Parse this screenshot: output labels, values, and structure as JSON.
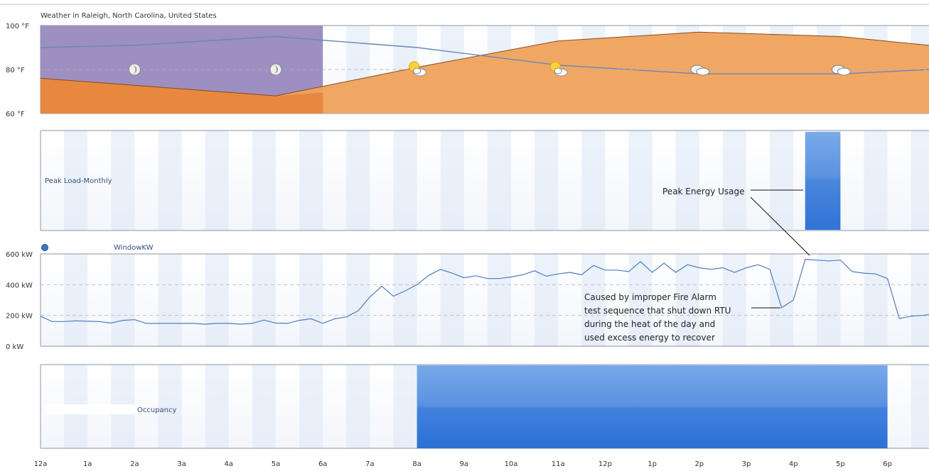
{
  "weather_title": "Weather in Raleigh, North Carolina, United States",
  "hours": [
    "12a",
    "1a",
    "2a",
    "3a",
    "4a",
    "5a",
    "6a",
    "7a",
    "8a",
    "9a",
    "10a",
    "11a",
    "12p",
    "1p",
    "2p",
    "3p",
    "4p",
    "5p",
    "6p"
  ],
  "colors": {
    "night_band": "#9d8fc0",
    "day_band": "#f0a25c",
    "temp_fill": "#e8843a",
    "temp_line": "#6a86b8",
    "bar_blue": "#3d7fd8",
    "band_light": "#f2f6fc",
    "band_dark": "#dde7f5"
  },
  "chart_data": [
    {
      "type": "area",
      "panel": "weather",
      "title": "Weather in Raleigh, North Carolina, United States",
      "y_ticks": [
        "100 °F",
        "80 °F",
        "60 °F"
      ],
      "ylim": [
        60,
        100
      ],
      "series": [
        {
          "x": [
            0,
            5,
            8,
            11,
            14,
            17,
            19
          ],
          "values": [
            76,
            68,
            81,
            93,
            97,
            95,
            91
          ]
        },
        {
          "x": [
            0,
            2,
            5,
            8,
            11,
            14,
            17,
            19
          ],
          "values": [
            90,
            91,
            95,
            90,
            82,
            78,
            78,
            80
          ]
        }
      ],
      "icons": [
        {
          "hour": 2,
          "name": "moon-icon"
        },
        {
          "hour": 5,
          "name": "moon-icon"
        },
        {
          "hour": 8,
          "name": "partly-sunny-icon"
        },
        {
          "hour": 11,
          "name": "partly-sunny-icon"
        },
        {
          "hour": 14,
          "name": "cloudy-icon"
        },
        {
          "hour": 17,
          "name": "cloudy-icon"
        }
      ]
    },
    {
      "type": "bar",
      "panel": "peak",
      "label": "Peak Load-Monthly",
      "bars": [
        {
          "start": 16.25,
          "end": 17.0
        }
      ]
    },
    {
      "type": "line",
      "panel": "kw",
      "legend": "WindowKW",
      "y_ticks": [
        "600 kW",
        "400 kW",
        "200 kW",
        "0 kW"
      ],
      "ylim": [
        0,
        600
      ],
      "x": [
        0,
        0.25,
        0.5,
        0.75,
        1,
        1.25,
        1.5,
        1.75,
        2,
        2.25,
        2.5,
        2.75,
        3,
        3.25,
        3.5,
        3.75,
        4,
        4.25,
        4.5,
        4.75,
        5,
        5.25,
        5.5,
        5.75,
        6,
        6.25,
        6.5,
        6.75,
        7,
        7.25,
        7.5,
        7.75,
        8,
        8.25,
        8.5,
        8.75,
        9,
        9.25,
        9.5,
        9.75,
        10,
        10.25,
        10.5,
        10.75,
        11,
        11.25,
        11.5,
        11.75,
        12,
        12.25,
        12.5,
        12.75,
        13,
        13.25,
        13.5,
        13.75,
        14,
        14.25,
        14.5,
        14.75,
        15,
        15.25,
        15.5,
        15.75,
        16,
        16.25,
        16.5,
        16.75,
        17,
        17.25,
        17.5,
        17.75,
        18,
        18.25,
        18.5,
        18.75,
        19
      ],
      "values": [
        195,
        160,
        160,
        165,
        162,
        160,
        150,
        168,
        172,
        148,
        148,
        148,
        148,
        148,
        143,
        148,
        148,
        143,
        148,
        170,
        150,
        148,
        168,
        178,
        148,
        178,
        190,
        230,
        320,
        390,
        325,
        360,
        400,
        460,
        500,
        475,
        445,
        458,
        440,
        440,
        450,
        465,
        490,
        455,
        470,
        480,
        465,
        525,
        495,
        495,
        485,
        550,
        480,
        540,
        480,
        530,
        510,
        500,
        510,
        480,
        510,
        530,
        500,
        250,
        300,
        565,
        560,
        555,
        560,
        485,
        475,
        470,
        440,
        180,
        195,
        200,
        205
      ]
    },
    {
      "type": "bar",
      "panel": "occupancy",
      "label": "Occupancy",
      "bars": [
        {
          "start": 8.0,
          "end": 18.0
        }
      ]
    }
  ],
  "annotations": {
    "peak_label": "Peak Energy Usage",
    "cause_lines": [
      "Caused by improper Fire Alarm",
      "test sequence that shut down RTU",
      "during the heat of the day and",
      "used excess energy to recover"
    ]
  }
}
